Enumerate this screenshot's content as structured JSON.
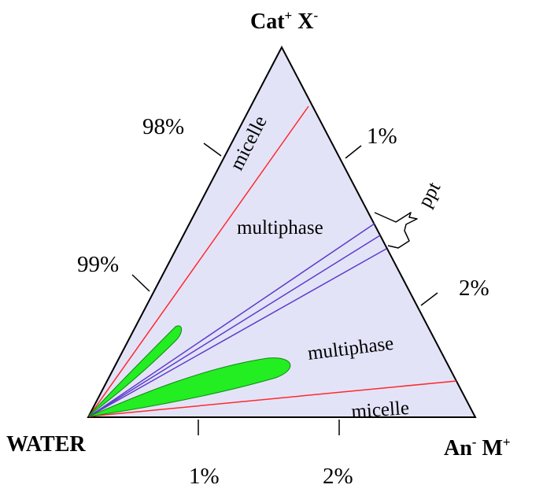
{
  "vertices": {
    "top": {
      "label": "Cat",
      "sup1": "+",
      "label2": " X",
      "sup2": "-"
    },
    "bottom_left": {
      "label": "WATER"
    },
    "bottom_right": {
      "label": "An",
      "sup1": "-",
      "label2": " M",
      "sup2": "+"
    }
  },
  "left_axis_ticks": [
    "98%",
    "99%"
  ],
  "right_axis_ticks": [
    "1%",
    "2%"
  ],
  "bottom_axis_ticks": [
    "1%",
    "2%"
  ],
  "regions": {
    "micelle_upper": "micelle",
    "multiphase_upper": "multiphase",
    "ppt": "ppt",
    "multiphase_lower": "multiphase",
    "micelle_lower": "micelle"
  },
  "colors": {
    "triangle_fill": "#e3e3f8",
    "phase_boundary": "#ff2a2a",
    "ppt_boundary": "#5e3cc9",
    "vesicle_region": "#22ee22"
  }
}
